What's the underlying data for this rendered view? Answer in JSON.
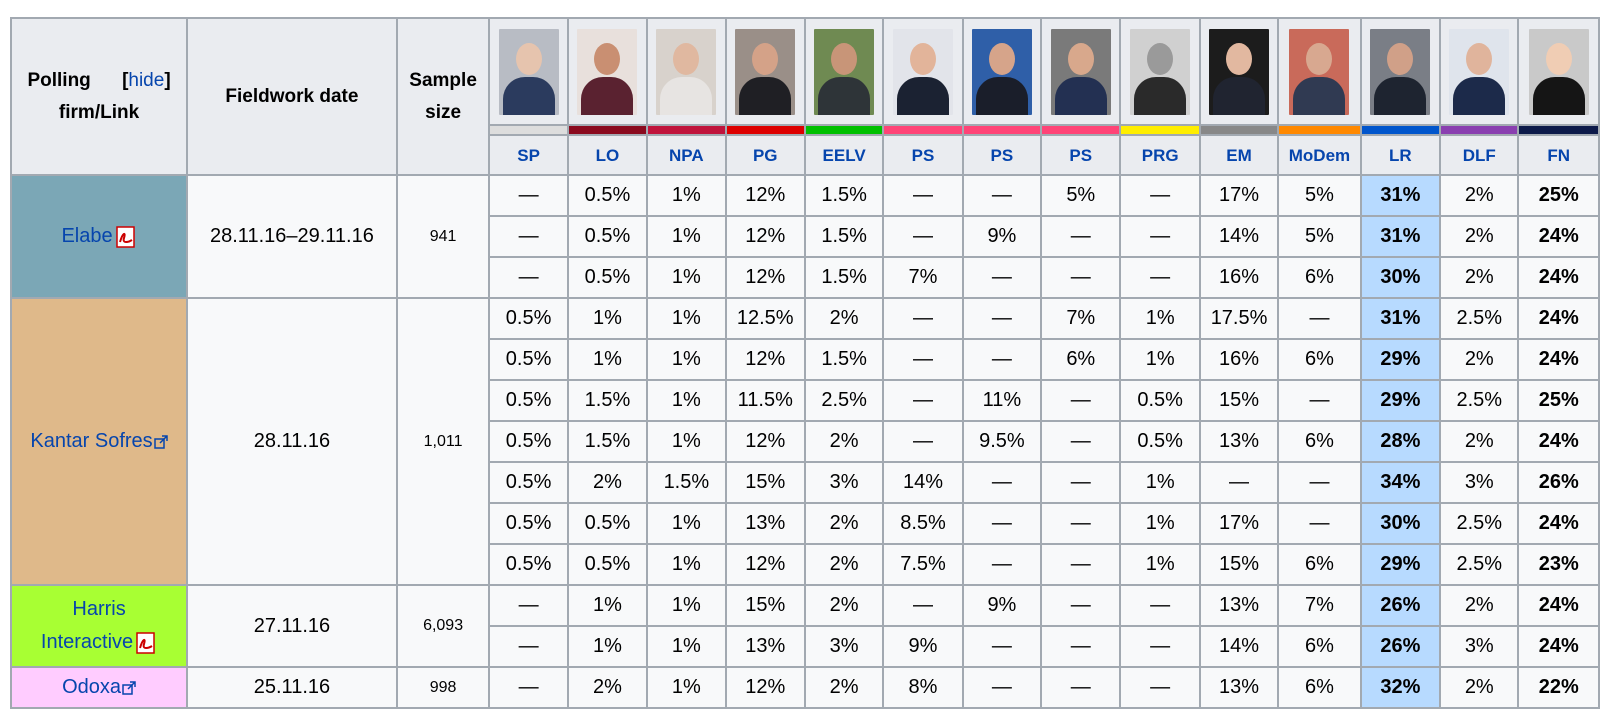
{
  "header": {
    "firm_label_1": "Polling",
    "firm_label_2": "firm/Link",
    "hide_label": "hide",
    "date_label": "Fieldwork date",
    "size_label_1": "Sample",
    "size_label_2": "size"
  },
  "parties": [
    {
      "name": "SP",
      "color": "#dddddd",
      "bg": "#b8bcc4",
      "skin": "#e6c4ae",
      "suit": "#2b3b5e"
    },
    {
      "name": "LO",
      "color": "#8b0a1e",
      "bg": "#e8e0dc",
      "skin": "#c98f72",
      "suit": "#5a2230"
    },
    {
      "name": "NPA",
      "color": "#c0143c",
      "bg": "#d8d2cc",
      "skin": "#e0b8a0",
      "suit": "#e7e4e2"
    },
    {
      "name": "PG",
      "color": "#dd0000",
      "bg": "#9a8f88",
      "skin": "#d4a288",
      "suit": "#1f1f24"
    },
    {
      "name": "EELV",
      "color": "#00c000",
      "bg": "#6f8a52",
      "skin": "#c89578",
      "suit": "#2e3438"
    },
    {
      "name": "PS",
      "color": "#ff4477",
      "bg": "#e2e4ea",
      "skin": "#e2b49a",
      "suit": "#1b2232"
    },
    {
      "name": "PS",
      "color": "#ff4477",
      "bg": "#2f5fa8",
      "skin": "#d6a48a",
      "suit": "#1a1e2a"
    },
    {
      "name": "PS",
      "color": "#ff4477",
      "bg": "#7a7a7a",
      "skin": "#d8a88c",
      "suit": "#233052"
    },
    {
      "name": "PRG",
      "color": "#ffee00",
      "bg": "#d0d0d0",
      "skin": "#9a9a9a",
      "suit": "#2a2a2a"
    },
    {
      "name": "EM",
      "color": "#888888",
      "bg": "#1c1c1c",
      "skin": "#e2b8a0",
      "suit": "#202430"
    },
    {
      "name": "MoDem",
      "color": "#ff8800",
      "bg": "#c96a5a",
      "skin": "#d8a890",
      "suit": "#303a52"
    },
    {
      "name": "LR",
      "color": "#0055cc",
      "bg": "#7a7e86",
      "skin": "#d0a088",
      "suit": "#1e2430"
    },
    {
      "name": "DLF",
      "color": "#8a3fb0",
      "bg": "#dfe4ec",
      "skin": "#e0b49c",
      "suit": "#1c2a4a"
    },
    {
      "name": "FN",
      "color": "#0d1a4a",
      "bg": "#c9c9c9",
      "skin": "#f0cdb4",
      "suit": "#151515"
    }
  ],
  "firms": [
    {
      "name": "Elabe",
      "icon": "pdf-icon",
      "bg": "#7ba7b6",
      "date": "28.11.16–29.11.16",
      "size": "941",
      "rows": [
        [
          "—",
          "0.5%",
          "1%",
          "12%",
          "1.5%",
          "—",
          "—",
          "5%",
          "—",
          "17%",
          "5%",
          "31%",
          "2%",
          "25%"
        ],
        [
          "—",
          "0.5%",
          "1%",
          "12%",
          "1.5%",
          "—",
          "9%",
          "—",
          "—",
          "14%",
          "5%",
          "31%",
          "2%",
          "24%"
        ],
        [
          "—",
          "0.5%",
          "1%",
          "12%",
          "1.5%",
          "7%",
          "—",
          "—",
          "—",
          "16%",
          "6%",
          "30%",
          "2%",
          "24%"
        ]
      ]
    },
    {
      "name": "Kantar Sofres",
      "icon": "external-link-icon",
      "bg": "#dfb98a",
      "date": "28.11.16",
      "size": "1,011",
      "rows": [
        [
          "0.5%",
          "1%",
          "1%",
          "12.5%",
          "2%",
          "—",
          "—",
          "7%",
          "1%",
          "17.5%",
          "—",
          "31%",
          "2.5%",
          "24%"
        ],
        [
          "0.5%",
          "1%",
          "1%",
          "12%",
          "1.5%",
          "—",
          "—",
          "6%",
          "1%",
          "16%",
          "6%",
          "29%",
          "2%",
          "24%"
        ],
        [
          "0.5%",
          "1.5%",
          "1%",
          "11.5%",
          "2.5%",
          "—",
          "11%",
          "—",
          "0.5%",
          "15%",
          "—",
          "29%",
          "2.5%",
          "25%"
        ],
        [
          "0.5%",
          "1.5%",
          "1%",
          "12%",
          "2%",
          "—",
          "9.5%",
          "—",
          "0.5%",
          "13%",
          "6%",
          "28%",
          "2%",
          "24%"
        ],
        [
          "0.5%",
          "2%",
          "1.5%",
          "15%",
          "3%",
          "14%",
          "—",
          "—",
          "1%",
          "—",
          "—",
          "34%",
          "3%",
          "26%"
        ],
        [
          "0.5%",
          "0.5%",
          "1%",
          "13%",
          "2%",
          "8.5%",
          "—",
          "—",
          "1%",
          "17%",
          "—",
          "30%",
          "2.5%",
          "24%"
        ],
        [
          "0.5%",
          "0.5%",
          "1%",
          "12%",
          "2%",
          "7.5%",
          "—",
          "—",
          "1%",
          "15%",
          "6%",
          "29%",
          "2.5%",
          "23%"
        ]
      ]
    },
    {
      "name": "Harris Interactive",
      "name_1": "Harris",
      "name_2": "Interactive",
      "icon": "pdf-icon",
      "bg": "#a8ff33",
      "date": "27.11.16",
      "size": "6,093",
      "rows": [
        [
          "—",
          "1%",
          "1%",
          "15%",
          "2%",
          "—",
          "9%",
          "—",
          "—",
          "13%",
          "7%",
          "26%",
          "2%",
          "24%"
        ],
        [
          "—",
          "1%",
          "1%",
          "13%",
          "3%",
          "9%",
          "—",
          "—",
          "—",
          "14%",
          "6%",
          "26%",
          "3%",
          "24%"
        ]
      ]
    },
    {
      "name": "Odoxa",
      "icon": "external-link-icon",
      "bg": "#ffccff",
      "date": "25.11.16",
      "size": "998",
      "rows": [
        [
          "—",
          "2%",
          "1%",
          "12%",
          "2%",
          "8%",
          "—",
          "—",
          "—",
          "13%",
          "6%",
          "32%",
          "2%",
          "22%"
        ]
      ]
    }
  ],
  "lead_color": "#b7daff",
  "link_color": "#0645ad"
}
